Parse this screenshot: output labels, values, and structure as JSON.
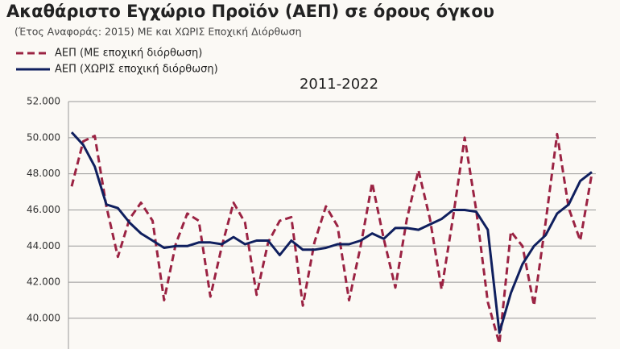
{
  "chart_data": {
    "type": "line",
    "title": "Ακαθάριστο Εγχώριο Προϊόν (ΑΕΠ) σε όρους όγκου",
    "subtitle": "(Έτος Αναφοράς:  2015) ΜΕ και ΧΩΡΙΣ Εποχική Διόρθωση",
    "period": "2011-2022",
    "ylim": [
      38300,
      52000
    ],
    "yticks": [
      {
        "value": 40000,
        "label": "40.000"
      },
      {
        "value": 42000,
        "label": "42.000"
      },
      {
        "value": 44000,
        "label": "44.000"
      },
      {
        "value": 46000,
        "label": "46.000"
      },
      {
        "value": 48000,
        "label": "48.000"
      },
      {
        "value": 50000,
        "label": "50.000"
      },
      {
        "value": 52000,
        "label": "52.000"
      }
    ],
    "grid": true,
    "series": [
      {
        "name": "ΑΕΠ (ΜΕ εποχική διόρθωση)",
        "color": "#9b2343",
        "dashed": true,
        "values": [
          47300,
          49800,
          50100,
          46200,
          43400,
          45500,
          46400,
          45400,
          41000,
          44100,
          45800,
          45400,
          41200,
          44000,
          46400,
          45300,
          41300,
          44200,
          45400,
          45600,
          40700,
          44200,
          46200,
          45100,
          41000,
          44000,
          47500,
          44400,
          41700,
          45500,
          48200,
          45500,
          41600,
          45600,
          50000,
          46000,
          40900,
          38600,
          44800,
          44000,
          40700,
          45300,
          50200,
          46100,
          44300,
          48000
        ]
      },
      {
        "name": "ΑΕΠ (ΧΩΡΙΣ εποχική διόρθωση)",
        "color": "#0f1f5e",
        "dashed": false,
        "values": [
          50300,
          49600,
          48400,
          46300,
          46100,
          45300,
          44700,
          44300,
          43900,
          44000,
          44000,
          44200,
          44200,
          44100,
          44500,
          44100,
          44300,
          44300,
          43500,
          44300,
          43800,
          43800,
          43900,
          44100,
          44100,
          44300,
          44700,
          44400,
          45000,
          45000,
          44900,
          45200,
          45500,
          46000,
          46000,
          45900,
          44900,
          39200,
          41400,
          43000,
          44000,
          44600,
          45800,
          46300,
          47600,
          48100
        ]
      }
    ]
  }
}
